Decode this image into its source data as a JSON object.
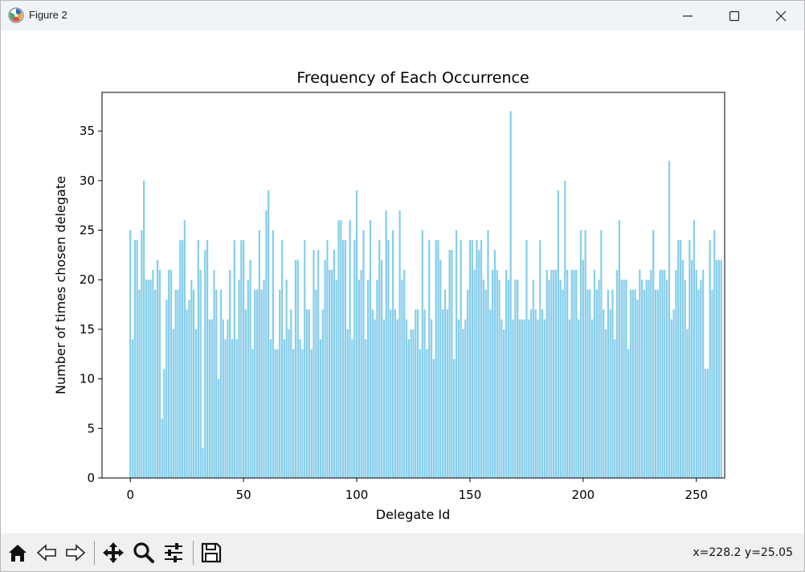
{
  "window": {
    "title": "Figure 2",
    "icon": "matplotlib-icon"
  },
  "toolbar": {
    "buttons": [
      {
        "name": "home-button",
        "icon": "home-icon"
      },
      {
        "name": "back-button",
        "icon": "arrow-left-icon"
      },
      {
        "name": "forward-button",
        "icon": "arrow-right-icon"
      },
      {
        "name": "pan-button",
        "icon": "move-icon"
      },
      {
        "name": "zoom-button",
        "icon": "magnifier-icon"
      },
      {
        "name": "configure-subplots-button",
        "icon": "sliders-icon"
      },
      {
        "name": "save-button",
        "icon": "floppy-disk-icon"
      }
    ],
    "coordinates": "x=228.2 y=25.05"
  },
  "colors": {
    "bar": "#87ceeb",
    "titlebar": "#f0f4f9",
    "toolbar": "#f0f0f0"
  },
  "chart_data": {
    "type": "bar",
    "title": "Frequency of Each Occurrence",
    "xlabel": "Delegate Id",
    "ylabel": "Number of times chosen delegate",
    "xlim": [
      -12.5,
      262.5
    ],
    "ylim": [
      0,
      38.9
    ],
    "xticks": [
      0,
      50,
      100,
      150,
      200,
      250
    ],
    "yticks": [
      0,
      5,
      10,
      15,
      20,
      25,
      30,
      35
    ],
    "grid": false,
    "legend": "none",
    "x_start": 0,
    "values": [
      25,
      14,
      24,
      24,
      19,
      25,
      30,
      20,
      20,
      20,
      21,
      19,
      22,
      21,
      6,
      11,
      18,
      21,
      21,
      15,
      19,
      19,
      24,
      24,
      26,
      17,
      18,
      20,
      19,
      15,
      24,
      21,
      3,
      23,
      24,
      16,
      16,
      21,
      19,
      10,
      19,
      16,
      14,
      16,
      21,
      14,
      24,
      14,
      20,
      24,
      24,
      17,
      20,
      22,
      13,
      19,
      19,
      25,
      19,
      20,
      27,
      29,
      14,
      25,
      13,
      13,
      19,
      24,
      14,
      20,
      15,
      17,
      13,
      22,
      22,
      14,
      13,
      24,
      17,
      17,
      13,
      23,
      19,
      23,
      14,
      17,
      22,
      24,
      21,
      21,
      23,
      20,
      26,
      26,
      24,
      24,
      15,
      26,
      14,
      24,
      29,
      20,
      21,
      25,
      14,
      20,
      26,
      17,
      16,
      20,
      24,
      22,
      16,
      27,
      24,
      17,
      25,
      17,
      16,
      27,
      20,
      21,
      16,
      14,
      15,
      15,
      17,
      17,
      13,
      25,
      17,
      13,
      24,
      16,
      12,
      24,
      24,
      22,
      17,
      19,
      17,
      23,
      23,
      12,
      25,
      16,
      24,
      15,
      16,
      19,
      24,
      24,
      21,
      24,
      23,
      24,
      20,
      19,
      25,
      17,
      21,
      23,
      21,
      20,
      16,
      15,
      21,
      20,
      37,
      16,
      20,
      20,
      16,
      16,
      16,
      24,
      16,
      17,
      20,
      17,
      16,
      24,
      17,
      16,
      21,
      20,
      21,
      21,
      21,
      29,
      20,
      19,
      30,
      21,
      16,
      21,
      21,
      21,
      16,
      25,
      22,
      25,
      19,
      19,
      16,
      21,
      19,
      20,
      25,
      17,
      15,
      19,
      17,
      19,
      14,
      21,
      26,
      20,
      20,
      20,
      13,
      19,
      19,
      19,
      18,
      21,
      20,
      19,
      20,
      20,
      21,
      25,
      19,
      19,
      21,
      21,
      21,
      20,
      32,
      16,
      17,
      21,
      24,
      24,
      22,
      20,
      15,
      24,
      22,
      26,
      21,
      19,
      20,
      21,
      11,
      11,
      24,
      19,
      25,
      22,
      22,
      22
    ]
  }
}
